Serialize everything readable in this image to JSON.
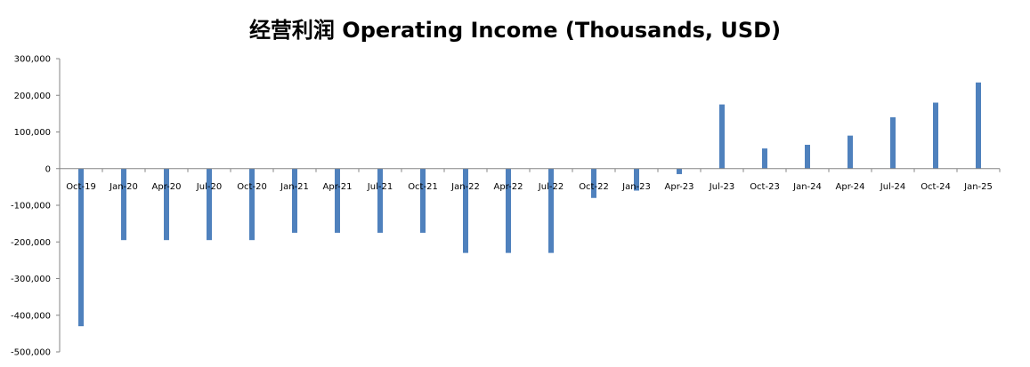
{
  "chart_data": {
    "type": "bar",
    "title": "经营利润 Operating Income (Thousands, USD)",
    "xlabel": "",
    "ylabel": "",
    "categories": [
      "Oct-19",
      "Jan-20",
      "Apr-20",
      "Jul-20",
      "Oct-20",
      "Jan-21",
      "Apr-21",
      "Jul-21",
      "Oct-21",
      "Jan-22",
      "Apr-22",
      "Jul-22",
      "Oct-22",
      "Jan-23",
      "Apr-23",
      "Jul-23",
      "Oct-23",
      "Jan-24",
      "Apr-24",
      "Jul-24",
      "Oct-24",
      "Jan-25"
    ],
    "values": [
      -430000,
      -195000,
      -195000,
      -195000,
      -195000,
      -175000,
      -175000,
      -175000,
      -175000,
      -230000,
      -230000,
      -230000,
      -80000,
      -60000,
      -15000,
      175000,
      55000,
      65000,
      90000,
      140000,
      180000,
      235000
    ],
    "ylim": [
      -500000,
      300000
    ],
    "yticks": [
      300000,
      200000,
      100000,
      0,
      -100000,
      -200000,
      -300000,
      -400000,
      -500000
    ],
    "ytick_labels": [
      "300,000",
      "200,000",
      "100,000",
      "0",
      "-100,000",
      "-200,000",
      "-300,000",
      "-400,000",
      "-500,000"
    ],
    "grid": false,
    "legend": "none",
    "bar_color": "#4f81bd",
    "axis_color": "#868686"
  }
}
